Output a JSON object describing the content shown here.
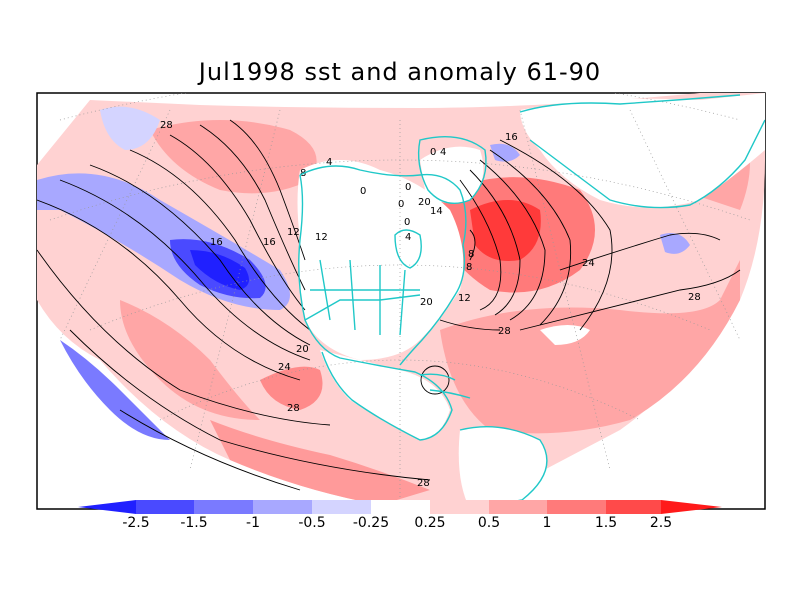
{
  "title": "Jul1998 sst and anomaly 61-90",
  "colorbar": {
    "labels": [
      "-2.5",
      "-1.5",
      "-1",
      "-0.5",
      "-0.25",
      "0.25",
      "0.5",
      "1",
      "1.5",
      "2.5"
    ],
    "colors": [
      "#2020ff",
      "#4a4aff",
      "#7a7aff",
      "#a8a8ff",
      "#d4d4ff",
      "#ffffff",
      "#ffd2d2",
      "#ffa6a6",
      "#ff7a7a",
      "#ff4a4a",
      "#ff1a1a"
    ]
  },
  "contour_labels": [
    "28",
    "4",
    "8",
    "0",
    "12",
    "12",
    "16",
    "0",
    "0",
    "20",
    "14",
    "0",
    "4",
    "0",
    "4",
    "8",
    "8",
    "12",
    "16",
    "24",
    "16",
    "20",
    "28",
    "28",
    "20",
    "24",
    "28",
    "28"
  ],
  "colors": {
    "coast": "#20c8c8",
    "contour": "#000000",
    "grid": "#999999"
  }
}
